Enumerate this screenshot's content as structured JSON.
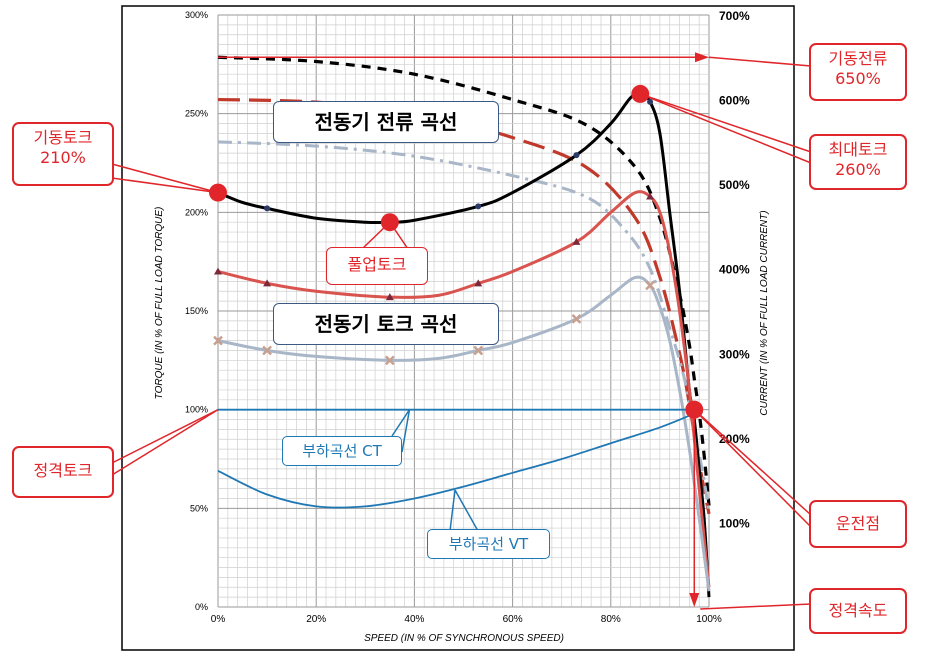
{
  "chart_data": {
    "type": "line",
    "xlabel": "SPEED (IN % OF SYNCHRONOUS SPEED)",
    "ylabel_left": "TORQUE (IN % OF FULL LOAD TORQUE)",
    "ylabel_right": "CURRENT (IN % OF FULL LOAD CURRENT)",
    "xlim": [
      0,
      100
    ],
    "ylim_left": [
      0,
      300
    ],
    "ylim_right": [
      0,
      700
    ],
    "x_ticks": [
      "0%",
      "20%",
      "40%",
      "60%",
      "80%",
      "100%"
    ],
    "y_ticks_left": [
      "0%",
      "50%",
      "100%",
      "150%",
      "200%",
      "250%",
      "300%"
    ],
    "y_ticks_right": [
      "100%",
      "200%",
      "300%",
      "400%",
      "500%",
      "600%",
      "700%"
    ],
    "grid": true,
    "series": [
      {
        "axis": "right",
        "style": "dash",
        "color": "#000000",
        "x": [
          0,
          20,
          40,
          60,
          75,
          85,
          90,
          94,
          96,
          97,
          98,
          99,
          100
        ],
        "y": [
          650,
          645,
          630,
          600,
          570,
          520,
          460,
          370,
          310,
          270,
          230,
          180,
          120
        ]
      },
      {
        "axis": "right",
        "style": "dash",
        "color": "#c0392b",
        "x": [
          0,
          20,
          40,
          60,
          75,
          85,
          90,
          94,
          96,
          98,
          100
        ],
        "y": [
          600,
          597,
          585,
          555,
          520,
          460,
          390,
          300,
          240,
          170,
          110
        ]
      },
      {
        "axis": "right",
        "style": "dashdot",
        "color": "#a8b6c8",
        "x": [
          0,
          20,
          40,
          60,
          75,
          83,
          88,
          92,
          95,
          97,
          99,
          100
        ],
        "y": [
          550,
          545,
          533,
          510,
          485,
          445,
          400,
          330,
          270,
          210,
          150,
          110
        ]
      },
      {
        "axis": "left",
        "style": "solid",
        "color": "#000000",
        "markers": true,
        "x": [
          0,
          5,
          10,
          20,
          30,
          35,
          40,
          53,
          60,
          73,
          80,
          84,
          86,
          88,
          90,
          92,
          94,
          96,
          97,
          98,
          99,
          100
        ],
        "y": [
          210,
          205,
          202,
          197,
          195,
          195,
          196,
          203,
          210,
          229,
          245,
          258,
          260,
          256,
          240,
          200,
          160,
          110,
          95,
          70,
          45,
          5
        ]
      },
      {
        "axis": "left",
        "style": "solid",
        "color": "#d9534f",
        "markers": true,
        "x": [
          0,
          10,
          20,
          35,
          45,
          53,
          60,
          73,
          80,
          85,
          88,
          90,
          92,
          94,
          96,
          98,
          100
        ],
        "y": [
          170,
          164,
          160,
          157,
          158,
          164,
          170,
          185,
          200,
          210,
          208,
          200,
          180,
          150,
          110,
          60,
          10
        ]
      },
      {
        "axis": "left",
        "style": "solid",
        "color": "#a8b6c8",
        "markers": true,
        "x": [
          0,
          10,
          20,
          35,
          45,
          53,
          60,
          73,
          80,
          85,
          88,
          90,
          92,
          94,
          96,
          98,
          100
        ],
        "y": [
          135,
          130,
          127,
          125,
          126,
          130,
          134,
          146,
          158,
          167,
          163,
          152,
          135,
          110,
          80,
          45,
          8
        ]
      },
      {
        "axis": "left",
        "style": "solid",
        "color": "#1f78b4",
        "x": [
          0,
          97
        ],
        "y": [
          100,
          100
        ]
      },
      {
        "axis": "left",
        "style": "solid",
        "color": "#1f78b4",
        "x": [
          0,
          10,
          20,
          30,
          40,
          50,
          60,
          70,
          80,
          90,
          97
        ],
        "y": [
          69,
          57,
          51,
          51,
          55,
          61,
          68,
          75,
          83,
          91,
          98
        ]
      }
    ],
    "annotations": {
      "start_current": {
        "text": "기동전류\n650%",
        "x": 0,
        "y": 650,
        "axis": "right"
      },
      "start_torque": {
        "text": "기동토크\n210%",
        "x": 0,
        "y": 210
      },
      "max_torque": {
        "text": "최대토크\n260%",
        "x": 86,
        "y": 260
      },
      "pullup_torque": {
        "text": "풀업토크",
        "x": 35,
        "y": 195
      },
      "rated_torque": {
        "text": "정격토크",
        "x": 0,
        "y": 100
      },
      "operating_point": {
        "text": "운전점",
        "x": 97,
        "y": 100
      },
      "rated_speed": {
        "text": "정격속도",
        "x": 97,
        "y": 0
      },
      "current_curve_label": "전동기 전류 곡선",
      "torque_curve_label": "전동기 토크 곡선",
      "load_ct_label": "부하곡선 CT",
      "load_vt_label": "부하곡선 VT"
    }
  },
  "colors": {
    "accent_red": "#e0262a",
    "load_blue": "#1f78b4",
    "box_border": "#3a5a85"
  }
}
